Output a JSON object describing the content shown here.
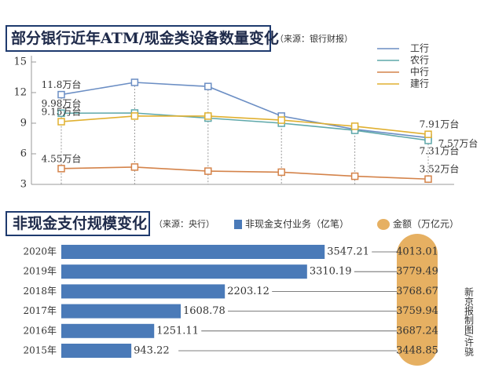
{
  "chart_data": [
    {
      "type": "line",
      "title": "部分银行近年ATM/现金类设备数量变化",
      "subtitle": "（来源：银行财报）",
      "categories": [
        null,
        null,
        null,
        null,
        null,
        null
      ],
      "ylim": [
        3,
        15
      ],
      "yticks": [
        3,
        6,
        9,
        12,
        15
      ],
      "legend": "top-right",
      "series": [
        {
          "name": "工行",
          "color": "#6b8ec4",
          "values": [
            11.8,
            13.0,
            12.6,
            9.7,
            8.4,
            7.57
          ],
          "value_labels": [
            "11.8万台",
            null,
            null,
            null,
            null,
            "7.57万台"
          ]
        },
        {
          "name": "农行",
          "color": "#5fa8aa",
          "values": [
            9.98,
            10.0,
            9.5,
            9.0,
            8.3,
            7.31
          ],
          "value_labels": [
            "9.98万台",
            null,
            null,
            null,
            null,
            "7.31万台"
          ]
        },
        {
          "name": "中行",
          "color": "#d4834a",
          "values": [
            4.55,
            4.7,
            4.3,
            4.2,
            3.8,
            3.52
          ],
          "value_labels": [
            "4.55万台",
            null,
            null,
            null,
            null,
            "3.52万台"
          ]
        },
        {
          "name": "建行",
          "color": "#e0b030",
          "values": [
            9.15,
            9.7,
            9.7,
            9.3,
            8.7,
            7.91
          ],
          "value_labels": [
            "9.15万台",
            null,
            null,
            null,
            null,
            "7.91万台"
          ]
        }
      ]
    },
    {
      "type": "bar",
      "orientation": "horizontal",
      "title": "非现金支付规模变化",
      "subtitle": "（来源：央行）",
      "categories": [
        "2020年",
        "2019年",
        "2018年",
        "2017年",
        "2016年",
        "2015年"
      ],
      "xlim": [
        0,
        4000
      ],
      "series": [
        {
          "name": "非现金支付业务（亿笔）",
          "color": "#4a7ab8",
          "values": [
            3547.21,
            3310.19,
            2203.12,
            1608.78,
            1251.11,
            943.22
          ],
          "value_labels": [
            "3547.21",
            "3310.19",
            "2203.12",
            "1608.78",
            "1251.11",
            "943.22"
          ]
        },
        {
          "name": "金额（万亿元）",
          "color": "#e6b062",
          "values": [
            4013.01,
            3779.49,
            3768.67,
            3759.94,
            3687.24,
            3448.85
          ],
          "value_labels": [
            "4013.01",
            "3779.49",
            "3768.67",
            "3759.94",
            "3687.24",
            "3448.85"
          ]
        }
      ]
    }
  ],
  "credit": "新京报制图/许骁"
}
